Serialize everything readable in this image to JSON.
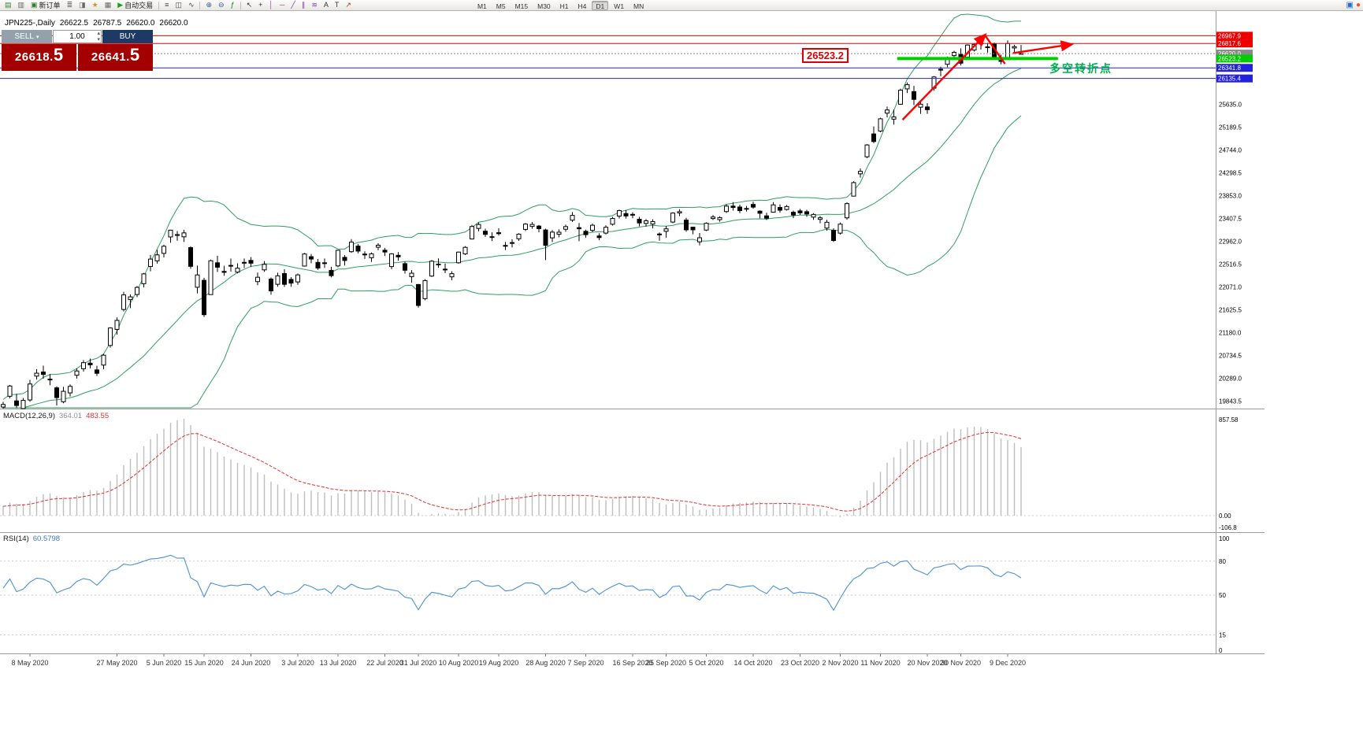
{
  "window": {
    "right_icons": [
      {
        "name": "community-icon",
        "glyph": "▣",
        "color": "#1f6fd0"
      },
      {
        "name": "alert-icon",
        "glyph": "●",
        "color": "#e8552a"
      }
    ]
  },
  "toolbar": {
    "items": [
      {
        "type": "icon",
        "name": "new-chart-icon",
        "glyph": "▤",
        "color": "#3a7d3a"
      },
      {
        "type": "icon",
        "name": "profiles-icon",
        "glyph": "▥",
        "color": "#666666"
      },
      {
        "type": "button",
        "name": "new-order-button",
        "glyph": "▣",
        "color": "#2e7d32",
        "label": "新订单"
      },
      {
        "type": "icon",
        "name": "market-watch-icon",
        "glyph": "≣",
        "color": "#666666"
      },
      {
        "type": "icon",
        "name": "data-window-icon",
        "glyph": "◨",
        "color": "#666666"
      },
      {
        "type": "icon",
        "name": "navigator-icon",
        "glyph": "★",
        "color": "#c59a27"
      },
      {
        "type": "icon",
        "name": "terminal-icon",
        "glyph": "▦",
        "color": "#666666"
      },
      {
        "type": "button",
        "name": "autotrading-button",
        "glyph": "▶",
        "color": "#18a018",
        "label": "自动交易"
      },
      {
        "type": "sep"
      },
      {
        "type": "icon",
        "name": "bar-chart-icon",
        "glyph": "≡",
        "color": "#444444"
      },
      {
        "type": "icon",
        "name": "candlestick-chart-icon",
        "glyph": "◫",
        "color": "#444444"
      },
      {
        "type": "icon",
        "name": "line-chart-icon",
        "glyph": "∿",
        "color": "#444444"
      },
      {
        "type": "sep"
      },
      {
        "type": "icon",
        "name": "zoom-in-icon",
        "glyph": "⊕",
        "color": "#33568c"
      },
      {
        "type": "icon",
        "name": "zoom-out-icon",
        "glyph": "⊖",
        "color": "#33568c"
      },
      {
        "type": "icon",
        "name": "indicators-icon",
        "glyph": "ƒ",
        "color": "#0a7a0a"
      },
      {
        "type": "sep"
      },
      {
        "type": "icon",
        "name": "cursor-icon",
        "glyph": "↖",
        "color": "#333333"
      },
      {
        "type": "icon",
        "name": "crosshair-icon",
        "glyph": "+",
        "color": "#333333"
      },
      {
        "type": "icon",
        "name": "vertical-line-icon",
        "glyph": "│",
        "color": "#7a3fa8"
      },
      {
        "type": "icon",
        "name": "horizontal-line-icon",
        "glyph": "─",
        "color": "#7a3fa8"
      },
      {
        "type": "icon",
        "name": "trendline-icon",
        "glyph": "╱",
        "color": "#7a3fa8"
      },
      {
        "type": "icon",
        "name": "channel-icon",
        "glyph": "∥",
        "color": "#7a3fa8"
      },
      {
        "type": "icon",
        "name": "fibonacci-icon",
        "glyph": "≋",
        "color": "#7a3fa8"
      },
      {
        "type": "icon",
        "name": "text-icon",
        "glyph": "A",
        "color": "#333333"
      },
      {
        "type": "icon",
        "name": "label-icon",
        "glyph": "T",
        "color": "#333333"
      },
      {
        "type": "icon",
        "name": "arrows-icon",
        "glyph": "↗",
        "color": "#b03030"
      }
    ],
    "timeframes": [
      "M1",
      "M5",
      "M15",
      "M30",
      "H1",
      "H4",
      "D1",
      "W1",
      "MN"
    ],
    "active_timeframe": "D1"
  },
  "trade_panel": {
    "sell_label": "SELL",
    "buy_label": "BUY",
    "volume": "1.00",
    "dropdown_caret": "▾",
    "spinner_up": "▴",
    "spinner_down": "▾",
    "sell_price_main": "26618.",
    "sell_price_pip": "5",
    "buy_price_main": "26641.",
    "buy_price_pip": "5"
  },
  "chart_header": {
    "symbol": "JPN225-,Daily",
    "open": "26622.5",
    "high": "26787.5",
    "low": "26620.0",
    "close": "26620.0"
  },
  "annotations": {
    "price_label": "26523.2",
    "turning_point_text": "多空转折点"
  },
  "chart_data": {
    "type": "candlestick",
    "symbol": "JPN225",
    "timeframe": "Daily",
    "price_axis_labels": [
      25635.0,
      25189.5,
      24744.0,
      24298.5,
      23853.0,
      23407.5,
      22962.0,
      22516.5,
      22071.0,
      21625.5,
      21180.0,
      20734.5,
      20289.0,
      19843.5
    ],
    "levels": [
      {
        "price": 26967.9,
        "color": "#ee0000",
        "style": "solid",
        "width": 1,
        "tag": "26967.9"
      },
      {
        "price": 26817.6,
        "color": "#ee0000",
        "style": "solid",
        "width": 1,
        "tag": "26817.6"
      },
      {
        "price": 26620.0,
        "color": "#888888",
        "style": "dotted",
        "width": 1,
        "tag": "26620.0"
      },
      {
        "price": 26341.8,
        "color": "#2222dd",
        "style": "solid",
        "width": 1,
        "tag": "26341.8"
      },
      {
        "price": 26135.4,
        "color": "#2222dd",
        "style": "solid",
        "width": 1,
        "tag": "26135.4"
      }
    ],
    "green_segment": {
      "price": 26523.2,
      "from_ci": 133.5,
      "to_ci": 157.5,
      "color": "#00cc00",
      "width": 4,
      "tag": "26523.2"
    },
    "shapes": [
      {
        "type": "arrow",
        "from_ci": 134.3,
        "from_price": 25330,
        "to_ci": 146.6,
        "to_price": 26980,
        "color": "#ff0000",
        "width": 2.4
      },
      {
        "type": "line",
        "from_ci": 146.6,
        "from_price": 26980,
        "to_ci": 149.6,
        "to_price": 26420,
        "color": "#ff0000",
        "width": 2.4
      },
      {
        "type": "arrow",
        "from_ci": 150.8,
        "from_price": 26630,
        "to_ci": 159.5,
        "to_price": 26800,
        "color": "#ff0000",
        "width": 2.4
      }
    ],
    "bollinger": {
      "period": 20,
      "deviations": 2,
      "color": "#2e9e5e"
    },
    "macd": {
      "label": "MACD(12,26,9)",
      "main_value": "364.01",
      "signal_value": "483.55",
      "fast": 12,
      "slow": 26,
      "signal": 9,
      "axis_max": "857.58",
      "axis_zero": "0.00",
      "axis_min": "-106.8",
      "hist_color": "#bdbdbd",
      "signal_color": "#e03030"
    },
    "rsi": {
      "label": "RSI(14)",
      "value": "60.5798",
      "period": 14,
      "color": "#4a90d2",
      "levels": [
        80,
        50,
        15
      ],
      "axis_labels": [
        "100",
        "80",
        "50",
        "15",
        "0"
      ]
    },
    "time_labels": [
      {
        "text": "8 May 2020",
        "ci": 4
      },
      {
        "text": "27 May 2020",
        "ci": 17
      },
      {
        "text": "5 Jun 2020",
        "ci": 24
      },
      {
        "text": "15 Jun 2020",
        "ci": 30
      },
      {
        "text": "24 Jun 2020",
        "ci": 37
      },
      {
        "text": "3 Jul 2020",
        "ci": 44
      },
      {
        "text": "13 Jul 2020",
        "ci": 50
      },
      {
        "text": "22 Jul 2020",
        "ci": 57
      },
      {
        "text": "31 Jul 2020",
        "ci": 62
      },
      {
        "text": "10 Aug 2020",
        "ci": 68
      },
      {
        "text": "19 Aug 2020",
        "ci": 74
      },
      {
        "text": "28 Aug 2020",
        "ci": 81
      },
      {
        "text": "7 Sep 2020",
        "ci": 87
      },
      {
        "text": "16 Sep 2020",
        "ci": 94
      },
      {
        "text": "25 Sep 2020",
        "ci": 99
      },
      {
        "text": "5 Oct 2020",
        "ci": 105
      },
      {
        "text": "14 Oct 2020",
        "ci": 112
      },
      {
        "text": "23 Oct 2020",
        "ci": 119
      },
      {
        "text": "2 Nov 2020",
        "ci": 125
      },
      {
        "text": "11 Nov 2020",
        "ci": 131
      },
      {
        "text": "20 Nov 2020",
        "ci": 138
      },
      {
        "text": "30 Nov 2020",
        "ci": 143
      },
      {
        "text": "9 Dec 2020",
        "ci": 150
      }
    ],
    "candles": [
      [
        19730,
        19830,
        19700,
        19780
      ],
      [
        19940,
        20160,
        19900,
        20140
      ],
      [
        19850,
        19990,
        19710,
        19760
      ],
      [
        19700,
        19905,
        19700,
        19860
      ],
      [
        19868,
        20261,
        19832,
        20179
      ],
      [
        20333,
        20470,
        20266,
        20390
      ],
      [
        20413,
        20537,
        20284,
        20366
      ],
      [
        20274,
        20373,
        20155,
        20267
      ],
      [
        20104,
        20133,
        19761,
        19914
      ],
      [
        19833,
        20123,
        19804,
        20037
      ],
      [
        20006,
        20172,
        19936,
        20133
      ],
      [
        20350,
        20483,
        20285,
        20433
      ],
      [
        20477,
        20646,
        20421,
        20595
      ],
      [
        20586,
        20675,
        20484,
        20552
      ],
      [
        20454,
        20534,
        20335,
        20388
      ],
      [
        20548,
        20768,
        20466,
        20741
      ],
      [
        20930,
        21284,
        20888,
        21271
      ],
      [
        21244,
        21478,
        21141,
        21419
      ],
      [
        21632,
        21976,
        21596,
        21916
      ],
      [
        21824,
        21925,
        21659,
        21878
      ],
      [
        21924,
        22091,
        21873,
        22062
      ],
      [
        22134,
        22343,
        22062,
        22326
      ],
      [
        22471,
        22695,
        22376,
        22614
      ],
      [
        22580,
        22794,
        22526,
        22696
      ],
      [
        22726,
        22894,
        22647,
        22864
      ],
      [
        23046,
        23185,
        22933,
        23178
      ],
      [
        23077,
        23161,
        22972,
        23091
      ],
      [
        23048,
        23186,
        22948,
        23125
      ],
      [
        22837,
        22864,
        22425,
        22473
      ],
      [
        22065,
        22487,
        21944,
        22305
      ],
      [
        22200,
        22250,
        21486,
        21531
      ],
      [
        21922,
        22605,
        21917,
        22582
      ],
      [
        22542,
        22679,
        22363,
        22456
      ],
      [
        22375,
        22484,
        22290,
        22355
      ],
      [
        22491,
        22625,
        22370,
        22479
      ],
      [
        22360,
        22534,
        22335,
        22437
      ],
      [
        22550,
        22625,
        22442,
        22549
      ],
      [
        22589,
        22655,
        22461,
        22534
      ],
      [
        22175,
        22351,
        22105,
        22260
      ],
      [
        22404,
        22576,
        22366,
        22512
      ],
      [
        22224,
        22255,
        21919,
        21995
      ],
      [
        22123,
        22349,
        22075,
        22288
      ],
      [
        22332,
        22416,
        22071,
        22122
      ],
      [
        22218,
        22261,
        22075,
        22146
      ],
      [
        22169,
        22332,
        22113,
        22306
      ],
      [
        22478,
        22733,
        22468,
        22714
      ],
      [
        22661,
        22713,
        22536,
        22615
      ],
      [
        22550,
        22615,
        22404,
        22439
      ],
      [
        22542,
        22626,
        22441,
        22529
      ],
      [
        22395,
        22465,
        22259,
        22291
      ],
      [
        22481,
        22795,
        22455,
        22785
      ],
      [
        22648,
        22692,
        22490,
        22587
      ],
      [
        22759,
        23003,
        22736,
        22946
      ],
      [
        22868,
        22907,
        22727,
        22770
      ],
      [
        22712,
        22765,
        22618,
        22696
      ],
      [
        22640,
        22745,
        22559,
        22717
      ],
      [
        22846,
        22923,
        22786,
        22884
      ],
      [
        22787,
        22832,
        22675,
        22752
      ],
      [
        22468,
        22731,
        22418,
        22715
      ],
      [
        22688,
        22750,
        22582,
        22657
      ],
      [
        22525,
        22564,
        22331,
        22397
      ],
      [
        22272,
        22400,
        22155,
        22339
      ],
      [
        22119,
        22129,
        21668,
        21710
      ],
      [
        21843,
        22222,
        21813,
        22195
      ],
      [
        22283,
        22596,
        22267,
        22573
      ],
      [
        22517,
        22627,
        22446,
        22515
      ],
      [
        22413,
        22528,
        22341,
        22418
      ],
      [
        22268,
        22378,
        22201,
        22330
      ],
      [
        22542,
        22762,
        22525,
        22750
      ],
      [
        22715,
        22867,
        22693,
        22843
      ],
      [
        23006,
        23279,
        22998,
        23249
      ],
      [
        23212,
        23328,
        23155,
        23289
      ],
      [
        23158,
        23206,
        23047,
        23096
      ],
      [
        23038,
        23136,
        22965,
        23051
      ],
      [
        23128,
        23216,
        23073,
        23110
      ],
      [
        22871,
        22948,
        22790,
        22880
      ],
      [
        22936,
        23002,
        22843,
        22920
      ],
      [
        23010,
        23118,
        22970,
        23100
      ],
      [
        23193,
        23317,
        23161,
        23296
      ],
      [
        23251,
        23335,
        23204,
        23290
      ],
      [
        23258,
        23280,
        23135,
        23208
      ],
      [
        23182,
        23206,
        22594,
        22882
      ],
      [
        23028,
        23179,
        22948,
        23140
      ],
      [
        23098,
        23194,
        23040,
        23138
      ],
      [
        23196,
        23287,
        23147,
        23247
      ],
      [
        23373,
        23530,
        23339,
        23466
      ],
      [
        23227,
        23318,
        22963,
        23205
      ],
      [
        23156,
        23190,
        23033,
        23090
      ],
      [
        23174,
        23306,
        23139,
        23274
      ],
      [
        23065,
        23118,
        22983,
        23033
      ],
      [
        23121,
        23274,
        23095,
        23235
      ],
      [
        23293,
        23439,
        23268,
        23406
      ],
      [
        23453,
        23577,
        23406,
        23559
      ],
      [
        23502,
        23569,
        23405,
        23455
      ],
      [
        23486,
        23527,
        23410,
        23476
      ],
      [
        23391,
        23437,
        23252,
        23319
      ],
      [
        23310,
        23392,
        23246,
        23360
      ],
      [
        23296,
        23390,
        23212,
        23346
      ],
      [
        23103,
        23133,
        22972,
        23087
      ],
      [
        23155,
        23259,
        23032,
        23204
      ],
      [
        23336,
        23529,
        23314,
        23511
      ],
      [
        23514,
        23587,
        23453,
        23539
      ],
      [
        23374,
        23419,
        23147,
        23185
      ],
      [
        23237,
        23244,
        23098,
        23185
      ],
      [
        22951,
        23123,
        22882,
        23030
      ],
      [
        23180,
        23332,
        23161,
        23312
      ],
      [
        23404,
        23474,
        23375,
        23434
      ],
      [
        23383,
        23451,
        23342,
        23423
      ],
      [
        23541,
        23682,
        23512,
        23647
      ],
      [
        23647,
        23725,
        23559,
        23620
      ],
      [
        23629,
        23674,
        23509,
        23559
      ],
      [
        23594,
        23649,
        23540,
        23601
      ],
      [
        23679,
        23733,
        23596,
        23627
      ],
      [
        23549,
        23563,
        23410,
        23507
      ],
      [
        23457,
        23517,
        23375,
        23411
      ],
      [
        23528,
        23724,
        23519,
        23671
      ],
      [
        23620,
        23680,
        23517,
        23567
      ],
      [
        23581,
        23669,
        23562,
        23639
      ],
      [
        23527,
        23560,
        23411,
        23474
      ],
      [
        23554,
        23592,
        23474,
        23516
      ],
      [
        23538,
        23575,
        23439,
        23494
      ],
      [
        23432,
        23510,
        23380,
        23485
      ],
      [
        23388,
        23456,
        23312,
        23419
      ],
      [
        23219,
        23379,
        23169,
        23332
      ],
      [
        23174,
        23215,
        22948,
        22977
      ],
      [
        23120,
        23327,
        23091,
        23295
      ],
      [
        23418,
        23722,
        23383,
        23695
      ],
      [
        23841,
        24132,
        23839,
        24105
      ],
      [
        24276,
        24382,
        24202,
        24325
      ],
      [
        24608,
        24855,
        24582,
        24839
      ],
      [
        25054,
        25199,
        24874,
        24906
      ],
      [
        25110,
        25371,
        25086,
        25349
      ],
      [
        25459,
        25588,
        25377,
        25521
      ],
      [
        25342,
        25530,
        25236,
        25385
      ],
      [
        25633,
        25937,
        25620,
        25906
      ],
      [
        25932,
        26057,
        25852,
        26014
      ],
      [
        25879,
        25991,
        25616,
        25728
      ],
      [
        25575,
        25708,
        25445,
        25634
      ],
      [
        25580,
        25655,
        25446,
        25527
      ],
      [
        25946,
        26182,
        25900,
        26165
      ],
      [
        26316,
        26364,
        26178,
        26297
      ],
      [
        26412,
        26561,
        26355,
        26537
      ],
      [
        26581,
        26675,
        26503,
        26644
      ],
      [
        26602,
        26722,
        26389,
        26433
      ],
      [
        26551,
        26800,
        26507,
        26787
      ],
      [
        26690,
        26824,
        26659,
        26800
      ],
      [
        26878,
        26894,
        26698,
        26809
      ],
      [
        26747,
        26829,
        26638,
        26751
      ],
      [
        26807,
        26835,
        26525,
        26547
      ],
      [
        26490,
        26599,
        26412,
        26467
      ],
      [
        26539,
        26876,
        26536,
        26817
      ],
      [
        26730,
        26792,
        26631,
        26756
      ],
      [
        26622.5,
        26787.5,
        26620,
        26620
      ]
    ]
  }
}
